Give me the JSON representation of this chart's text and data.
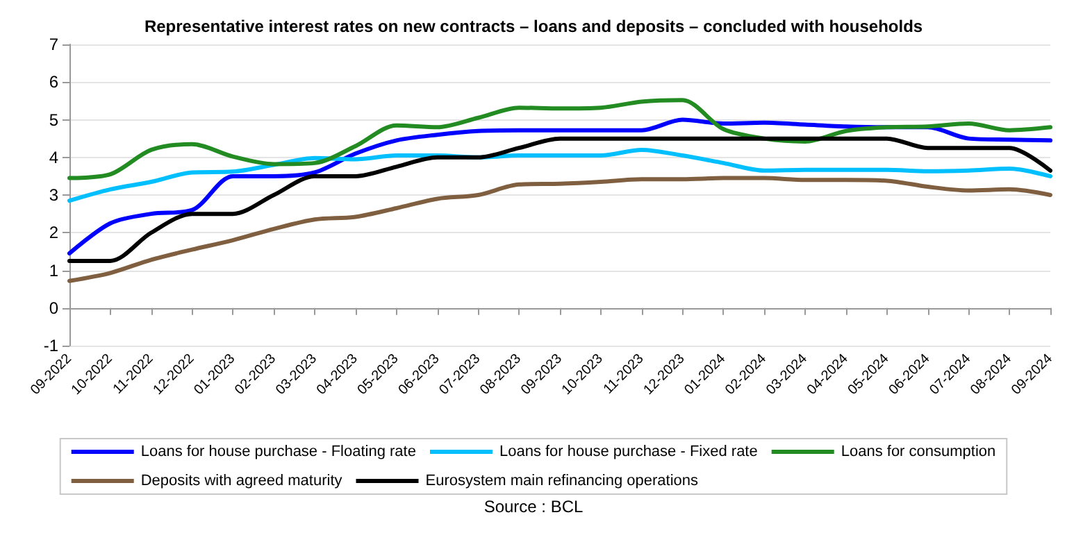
{
  "chart_data": {
    "type": "line",
    "title": "Representative interest rates on new contracts – loans and deposits – concluded with households",
    "categories": [
      "09-2022",
      "10-2022",
      "11-2022",
      "12-2022",
      "01-2023",
      "02-2023",
      "03-2023",
      "04-2023",
      "05-2023",
      "06-2023",
      "07-2023",
      "08-2023",
      "09-2023",
      "10-2023",
      "11-2023",
      "12-2023",
      "01-2024",
      "02-2024",
      "03-2024",
      "04-2024",
      "05-2024",
      "06-2024",
      "07-2024",
      "08-2024",
      "09-2024"
    ],
    "series": [
      {
        "name": "Loans for house purchase - Floating rate",
        "color": "#0000ff",
        "values": [
          1.45,
          2.25,
          2.5,
          2.6,
          3.5,
          3.5,
          3.6,
          4.1,
          4.45,
          4.6,
          4.7,
          4.72,
          4.72,
          4.72,
          4.72,
          5.0,
          4.9,
          4.92,
          4.87,
          4.82,
          4.8,
          4.8,
          4.5,
          4.47,
          4.45
        ]
      },
      {
        "name": "Loans for house purchase - Fixed rate",
        "color": "#00bfff",
        "values": [
          2.85,
          3.15,
          3.35,
          3.6,
          3.62,
          3.8,
          3.98,
          3.95,
          4.05,
          4.05,
          4.0,
          4.05,
          4.05,
          4.05,
          4.2,
          4.05,
          3.85,
          3.65,
          3.67,
          3.67,
          3.67,
          3.63,
          3.65,
          3.7,
          3.5
        ]
      },
      {
        "name": "Loans for consumption",
        "color": "#228b22",
        "values": [
          3.45,
          3.55,
          4.2,
          4.35,
          4.02,
          3.82,
          3.85,
          4.3,
          4.85,
          4.8,
          5.05,
          5.32,
          5.3,
          5.32,
          5.48,
          5.52,
          4.75,
          4.5,
          4.42,
          4.7,
          4.8,
          4.82,
          4.9,
          4.72,
          4.8
        ]
      },
      {
        "name": "Deposits with agreed maturity",
        "color": "#7f5f3f",
        "values": [
          0.72,
          0.93,
          1.28,
          1.55,
          1.8,
          2.1,
          2.35,
          2.42,
          2.65,
          2.9,
          3.0,
          3.28,
          3.3,
          3.35,
          3.42,
          3.42,
          3.45,
          3.45,
          3.4,
          3.4,
          3.38,
          3.22,
          3.12,
          3.15,
          3.0
        ]
      },
      {
        "name": "Eurosystem main refinancing operations",
        "color": "#000000",
        "values": [
          1.25,
          1.25,
          2.0,
          2.5,
          2.5,
          3.0,
          3.5,
          3.5,
          3.75,
          4.0,
          4.0,
          4.25,
          4.5,
          4.5,
          4.5,
          4.5,
          4.5,
          4.5,
          4.5,
          4.5,
          4.5,
          4.25,
          4.25,
          4.25,
          3.65
        ]
      }
    ],
    "ylim": [
      -1,
      7
    ],
    "yticks": [
      -1,
      0,
      1,
      2,
      3,
      4,
      5,
      6,
      7
    ],
    "grid": "y",
    "legend": "bottom",
    "marker": "none",
    "line_style": "solid",
    "annotations": [
      "Source : BCL"
    ]
  }
}
